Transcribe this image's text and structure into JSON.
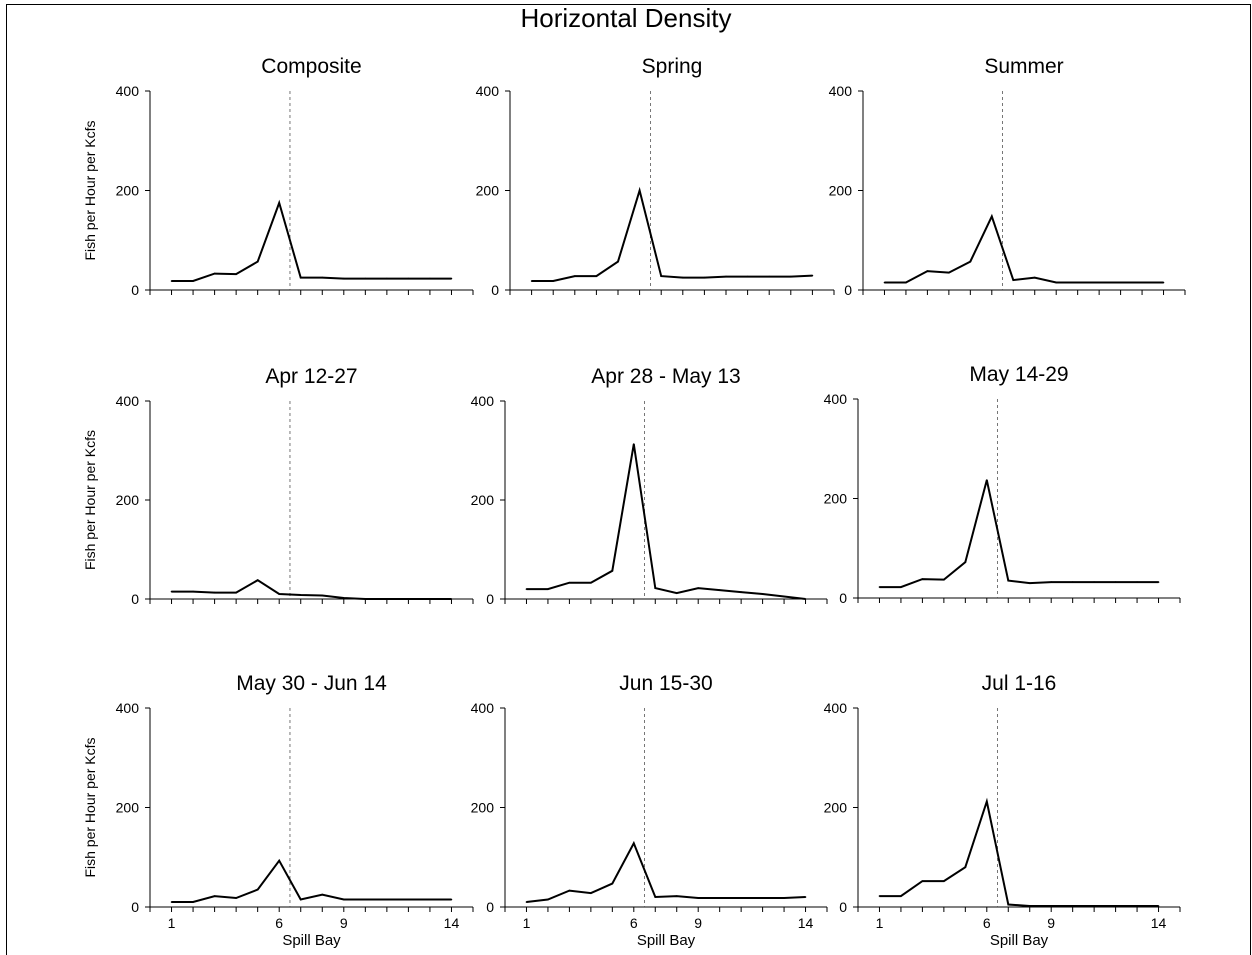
{
  "title": "Horizontal Density",
  "ylabel": "Fish per Hour per Kcfs",
  "xlabel": "Spill Bay",
  "chart_data": [
    {
      "type": "line",
      "title": "Composite",
      "x": [
        1,
        2,
        3,
        4,
        5,
        6,
        7,
        8,
        9,
        10,
        11,
        12,
        13,
        14
      ],
      "values": [
        18,
        18,
        33,
        32,
        57,
        175,
        25,
        25,
        23,
        23,
        23,
        23,
        23,
        23
      ],
      "xlim": [
        0,
        15
      ],
      "ylim": [
        0,
        400
      ],
      "yticks": [
        0,
        200,
        400
      ],
      "xticks": [
        1,
        6,
        9,
        14
      ],
      "reference_x": 6.5
    },
    {
      "type": "line",
      "title": "Spring",
      "x": [
        1,
        2,
        3,
        4,
        5,
        6,
        7,
        8,
        9,
        10,
        11,
        12,
        13,
        14
      ],
      "values": [
        18,
        18,
        28,
        28,
        57,
        200,
        28,
        25,
        25,
        27,
        27,
        27,
        27,
        29
      ],
      "xlim": [
        0,
        15
      ],
      "ylim": [
        0,
        400
      ],
      "yticks": [
        0,
        200,
        400
      ],
      "xticks": [
        1,
        6,
        9,
        14
      ],
      "reference_x": 6.5
    },
    {
      "type": "line",
      "title": "Summer",
      "x": [
        1,
        2,
        3,
        4,
        5,
        6,
        7,
        8,
        9,
        10,
        11,
        12,
        13,
        14
      ],
      "values": [
        15,
        15,
        38,
        35,
        57,
        148,
        20,
        25,
        15,
        15,
        15,
        15,
        15,
        15
      ],
      "xlim": [
        0,
        15
      ],
      "ylim": [
        0,
        400
      ],
      "yticks": [
        0,
        200,
        400
      ],
      "xticks": [
        1,
        6,
        9,
        14
      ],
      "reference_x": 6.5
    },
    {
      "type": "line",
      "title": "Apr 12-27",
      "x": [
        1,
        2,
        3,
        4,
        5,
        6,
        7,
        8,
        9,
        10,
        11,
        12,
        13,
        14
      ],
      "values": [
        15,
        15,
        13,
        13,
        38,
        10,
        8,
        7,
        2,
        0,
        0,
        0,
        0,
        0
      ],
      "xlim": [
        0,
        15
      ],
      "ylim": [
        0,
        400
      ],
      "yticks": [
        0,
        200,
        400
      ],
      "xticks": [
        1,
        6,
        9,
        14
      ],
      "reference_x": 6.5
    },
    {
      "type": "line",
      "title": "Apr 28 - May 13",
      "x": [
        1,
        2,
        3,
        4,
        5,
        6,
        7,
        8,
        9,
        10,
        11,
        12,
        13,
        14
      ],
      "values": [
        20,
        20,
        33,
        33,
        57,
        313,
        22,
        12,
        22,
        18,
        14,
        10,
        5,
        0
      ],
      "xlim": [
        0,
        15
      ],
      "ylim": [
        0,
        400
      ],
      "yticks": [
        0,
        200,
        400
      ],
      "xticks": [
        1,
        6,
        9,
        14
      ],
      "reference_x": 6.5
    },
    {
      "type": "line",
      "title": "May 14-29",
      "x": [
        1,
        2,
        3,
        4,
        5,
        6,
        7,
        8,
        9,
        10,
        11,
        12,
        13,
        14
      ],
      "values": [
        22,
        22,
        38,
        37,
        72,
        237,
        35,
        30,
        32,
        32,
        32,
        32,
        32,
        32
      ],
      "xlim": [
        0,
        15
      ],
      "ylim": [
        0,
        400
      ],
      "yticks": [
        0,
        200,
        400
      ],
      "xticks": [
        1,
        6,
        9,
        14
      ],
      "reference_x": 6.5
    },
    {
      "type": "line",
      "title": "May 30 - Jun 14",
      "x": [
        1,
        2,
        3,
        4,
        5,
        6,
        7,
        8,
        9,
        10,
        11,
        12,
        13,
        14
      ],
      "values": [
        10,
        10,
        22,
        18,
        35,
        93,
        15,
        25,
        15,
        15,
        15,
        15,
        15,
        15
      ],
      "xlim": [
        0,
        15
      ],
      "ylim": [
        0,
        400
      ],
      "yticks": [
        0,
        200,
        400
      ],
      "xticks": [
        1,
        6,
        9,
        14
      ],
      "reference_x": 6.5
    },
    {
      "type": "line",
      "title": "Jun 15-30",
      "x": [
        1,
        2,
        3,
        4,
        5,
        6,
        7,
        8,
        9,
        10,
        11,
        12,
        13,
        14
      ],
      "values": [
        10,
        15,
        33,
        28,
        47,
        128,
        20,
        22,
        18,
        18,
        18,
        18,
        18,
        20
      ],
      "xlim": [
        0,
        15
      ],
      "ylim": [
        0,
        400
      ],
      "yticks": [
        0,
        200,
        400
      ],
      "xticks": [
        1,
        6,
        9,
        14
      ],
      "reference_x": 6.5
    },
    {
      "type": "line",
      "title": "Jul 1-16",
      "x": [
        1,
        2,
        3,
        4,
        5,
        6,
        7,
        8,
        9,
        10,
        11,
        12,
        13,
        14
      ],
      "values": [
        22,
        22,
        52,
        52,
        80,
        212,
        5,
        2,
        2,
        2,
        2,
        2,
        2,
        2
      ],
      "xlim": [
        0,
        15
      ],
      "ylim": [
        0,
        400
      ],
      "yticks": [
        0,
        200,
        400
      ],
      "xticks": [
        1,
        6,
        9,
        14
      ],
      "reference_x": 6.5
    }
  ]
}
